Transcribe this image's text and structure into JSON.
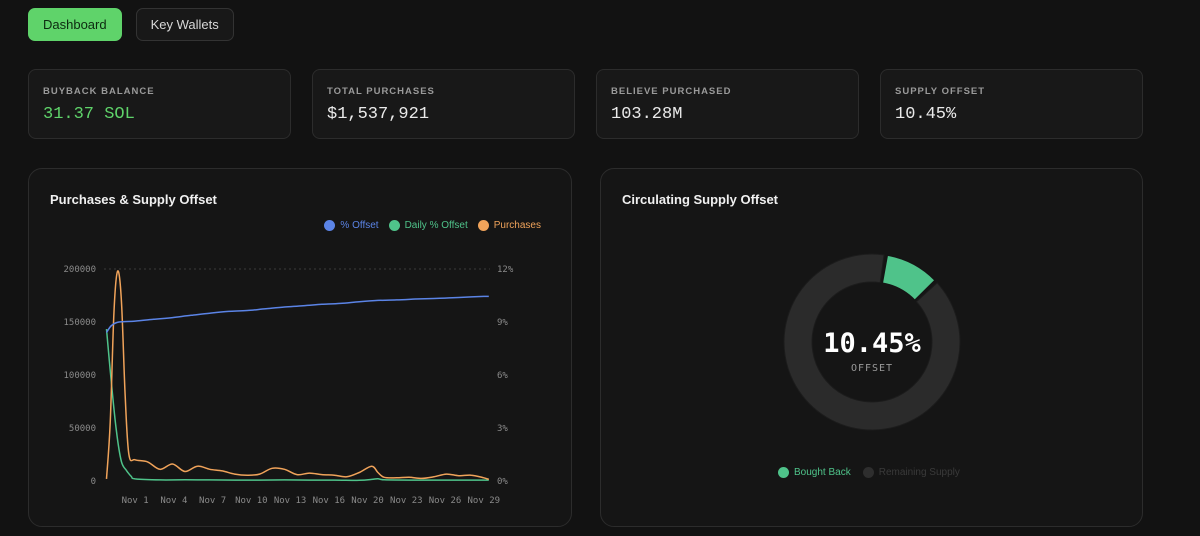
{
  "nav": {
    "dashboard_label": "Dashboard",
    "key_wallets_label": "Key Wallets"
  },
  "stats": [
    {
      "label": "BUYBACK BALANCE",
      "value": "31.37 SOL",
      "accent": "#5fd36a"
    },
    {
      "label": "TOTAL PURCHASES",
      "value": "$1,537,921"
    },
    {
      "label": "BELIEVE PURCHASED",
      "value": "103.28M"
    },
    {
      "label": "SUPPLY OFFSET",
      "value": "10.45%"
    }
  ],
  "left_panel": {
    "title": "Purchases & Supply Offset",
    "legend": [
      {
        "label": "% Offset",
        "color": "#5b84e6"
      },
      {
        "label": "Daily % Offset",
        "color": "#4fc38a"
      },
      {
        "label": "Purchases",
        "color": "#f0a35a"
      }
    ]
  },
  "right_panel": {
    "title": "Circulating Supply Offset",
    "center_value": "10.45%",
    "center_label": "OFFSET",
    "legend": [
      {
        "label": "Bought Back",
        "color": "#4fc38a"
      },
      {
        "label": "Remaining Supply",
        "color": "#2e2e2e"
      }
    ]
  },
  "chart_data": [
    {
      "type": "line",
      "title": "Purchases & Supply Offset",
      "x_tick_labels": [
        "Nov 1",
        "Nov 4",
        "Nov 7",
        "Nov 10",
        "Nov 13",
        "Nov 16",
        "Nov 20",
        "Nov 23",
        "Nov 26",
        "Nov 29"
      ],
      "y_left_ticks": [
        "0",
        "50000",
        "100000",
        "150000",
        "200000"
      ],
      "y_left_range": [
        0,
        200000
      ],
      "y_right_ticks": [
        "0%",
        "3%",
        "6%",
        "9%",
        "12%"
      ],
      "y_right_range": [
        0,
        12
      ],
      "x_range": [
        -2.5,
        28.5
      ],
      "grid": false,
      "legend_position": "top-right",
      "series": [
        {
          "name": "% Offset",
          "axis": "right",
          "color": "#5b84e6",
          "points": [
            [
              -2.3,
              8.4
            ],
            [
              -1.9,
              8.8
            ],
            [
              -1.3,
              9.0
            ],
            [
              0,
              9.05
            ],
            [
              1.5,
              9.15
            ],
            [
              3,
              9.25
            ],
            [
              4.5,
              9.38
            ],
            [
              6,
              9.5
            ],
            [
              7.5,
              9.6
            ],
            [
              9,
              9.65
            ],
            [
              10.5,
              9.75
            ],
            [
              12,
              9.85
            ],
            [
              13.5,
              9.92
            ],
            [
              15,
              10.0
            ],
            [
              16.5,
              10.05
            ],
            [
              18,
              10.15
            ],
            [
              19.5,
              10.22
            ],
            [
              21,
              10.25
            ],
            [
              22.5,
              10.3
            ],
            [
              24,
              10.33
            ],
            [
              25.5,
              10.37
            ],
            [
              27,
              10.42
            ],
            [
              28,
              10.45
            ],
            [
              28.4,
              10.45
            ]
          ]
        },
        {
          "name": "Daily % Offset",
          "axis": "right",
          "color": "#4fc38a",
          "points": [
            [
              -2.3,
              8.6
            ],
            [
              -1.9,
              5.5
            ],
            [
              -1.5,
              2.8
            ],
            [
              -1.1,
              1.1
            ],
            [
              -0.7,
              0.6
            ],
            [
              -0.3,
              0.25
            ],
            [
              0,
              0.12
            ],
            [
              2,
              0.06
            ],
            [
              4,
              0.07
            ],
            [
              6,
              0.06
            ],
            [
              8,
              0.05
            ],
            [
              10,
              0.05
            ],
            [
              12,
              0.06
            ],
            [
              14,
              0.05
            ],
            [
              16,
              0.05
            ],
            [
              18,
              0.04
            ],
            [
              19,
              0.09
            ],
            [
              19.5,
              0.13
            ],
            [
              20,
              0.07
            ],
            [
              22,
              0.05
            ],
            [
              24,
              0.05
            ],
            [
              26,
              0.05
            ],
            [
              28,
              0.05
            ],
            [
              28.4,
              0.05
            ]
          ]
        },
        {
          "name": "Purchases",
          "axis": "left",
          "color": "#f0a35a",
          "points": [
            [
              -2.3,
              2000
            ],
            [
              -2.0,
              55000
            ],
            [
              -1.7,
              160000
            ],
            [
              -1.4,
              198000
            ],
            [
              -1.1,
              170000
            ],
            [
              -0.8,
              80000
            ],
            [
              -0.5,
              25000
            ],
            [
              0,
              20000
            ],
            [
              1,
              18000
            ],
            [
              2,
              11000
            ],
            [
              3,
              16000
            ],
            [
              4,
              9000
            ],
            [
              5,
              14000
            ],
            [
              6,
              11000
            ],
            [
              7,
              9500
            ],
            [
              8,
              6500
            ],
            [
              9,
              5500
            ],
            [
              10,
              6500
            ],
            [
              11,
              12000
            ],
            [
              12,
              11000
            ],
            [
              13,
              6000
            ],
            [
              14,
              7500
            ],
            [
              15,
              6000
            ],
            [
              16,
              5500
            ],
            [
              17,
              4000
            ],
            [
              18,
              8000
            ],
            [
              19,
              14000
            ],
            [
              19.5,
              8000
            ],
            [
              20,
              3500
            ],
            [
              21,
              3000
            ],
            [
              22,
              3500
            ],
            [
              23,
              2500
            ],
            [
              24,
              4000
            ],
            [
              25,
              6500
            ],
            [
              26,
              5000
            ],
            [
              27,
              5500
            ],
            [
              28,
              3000
            ],
            [
              28.4,
              1500
            ]
          ]
        }
      ]
    },
    {
      "type": "pie",
      "title": "Circulating Supply Offset",
      "variant": "donut",
      "center_text": "10.45%",
      "slices": [
        {
          "label": "Bought Back",
          "value": 10.45,
          "color": "#4fc38a"
        },
        {
          "label": "Remaining Supply",
          "value": 89.55,
          "color": "#2e2e2e"
        }
      ]
    }
  ]
}
